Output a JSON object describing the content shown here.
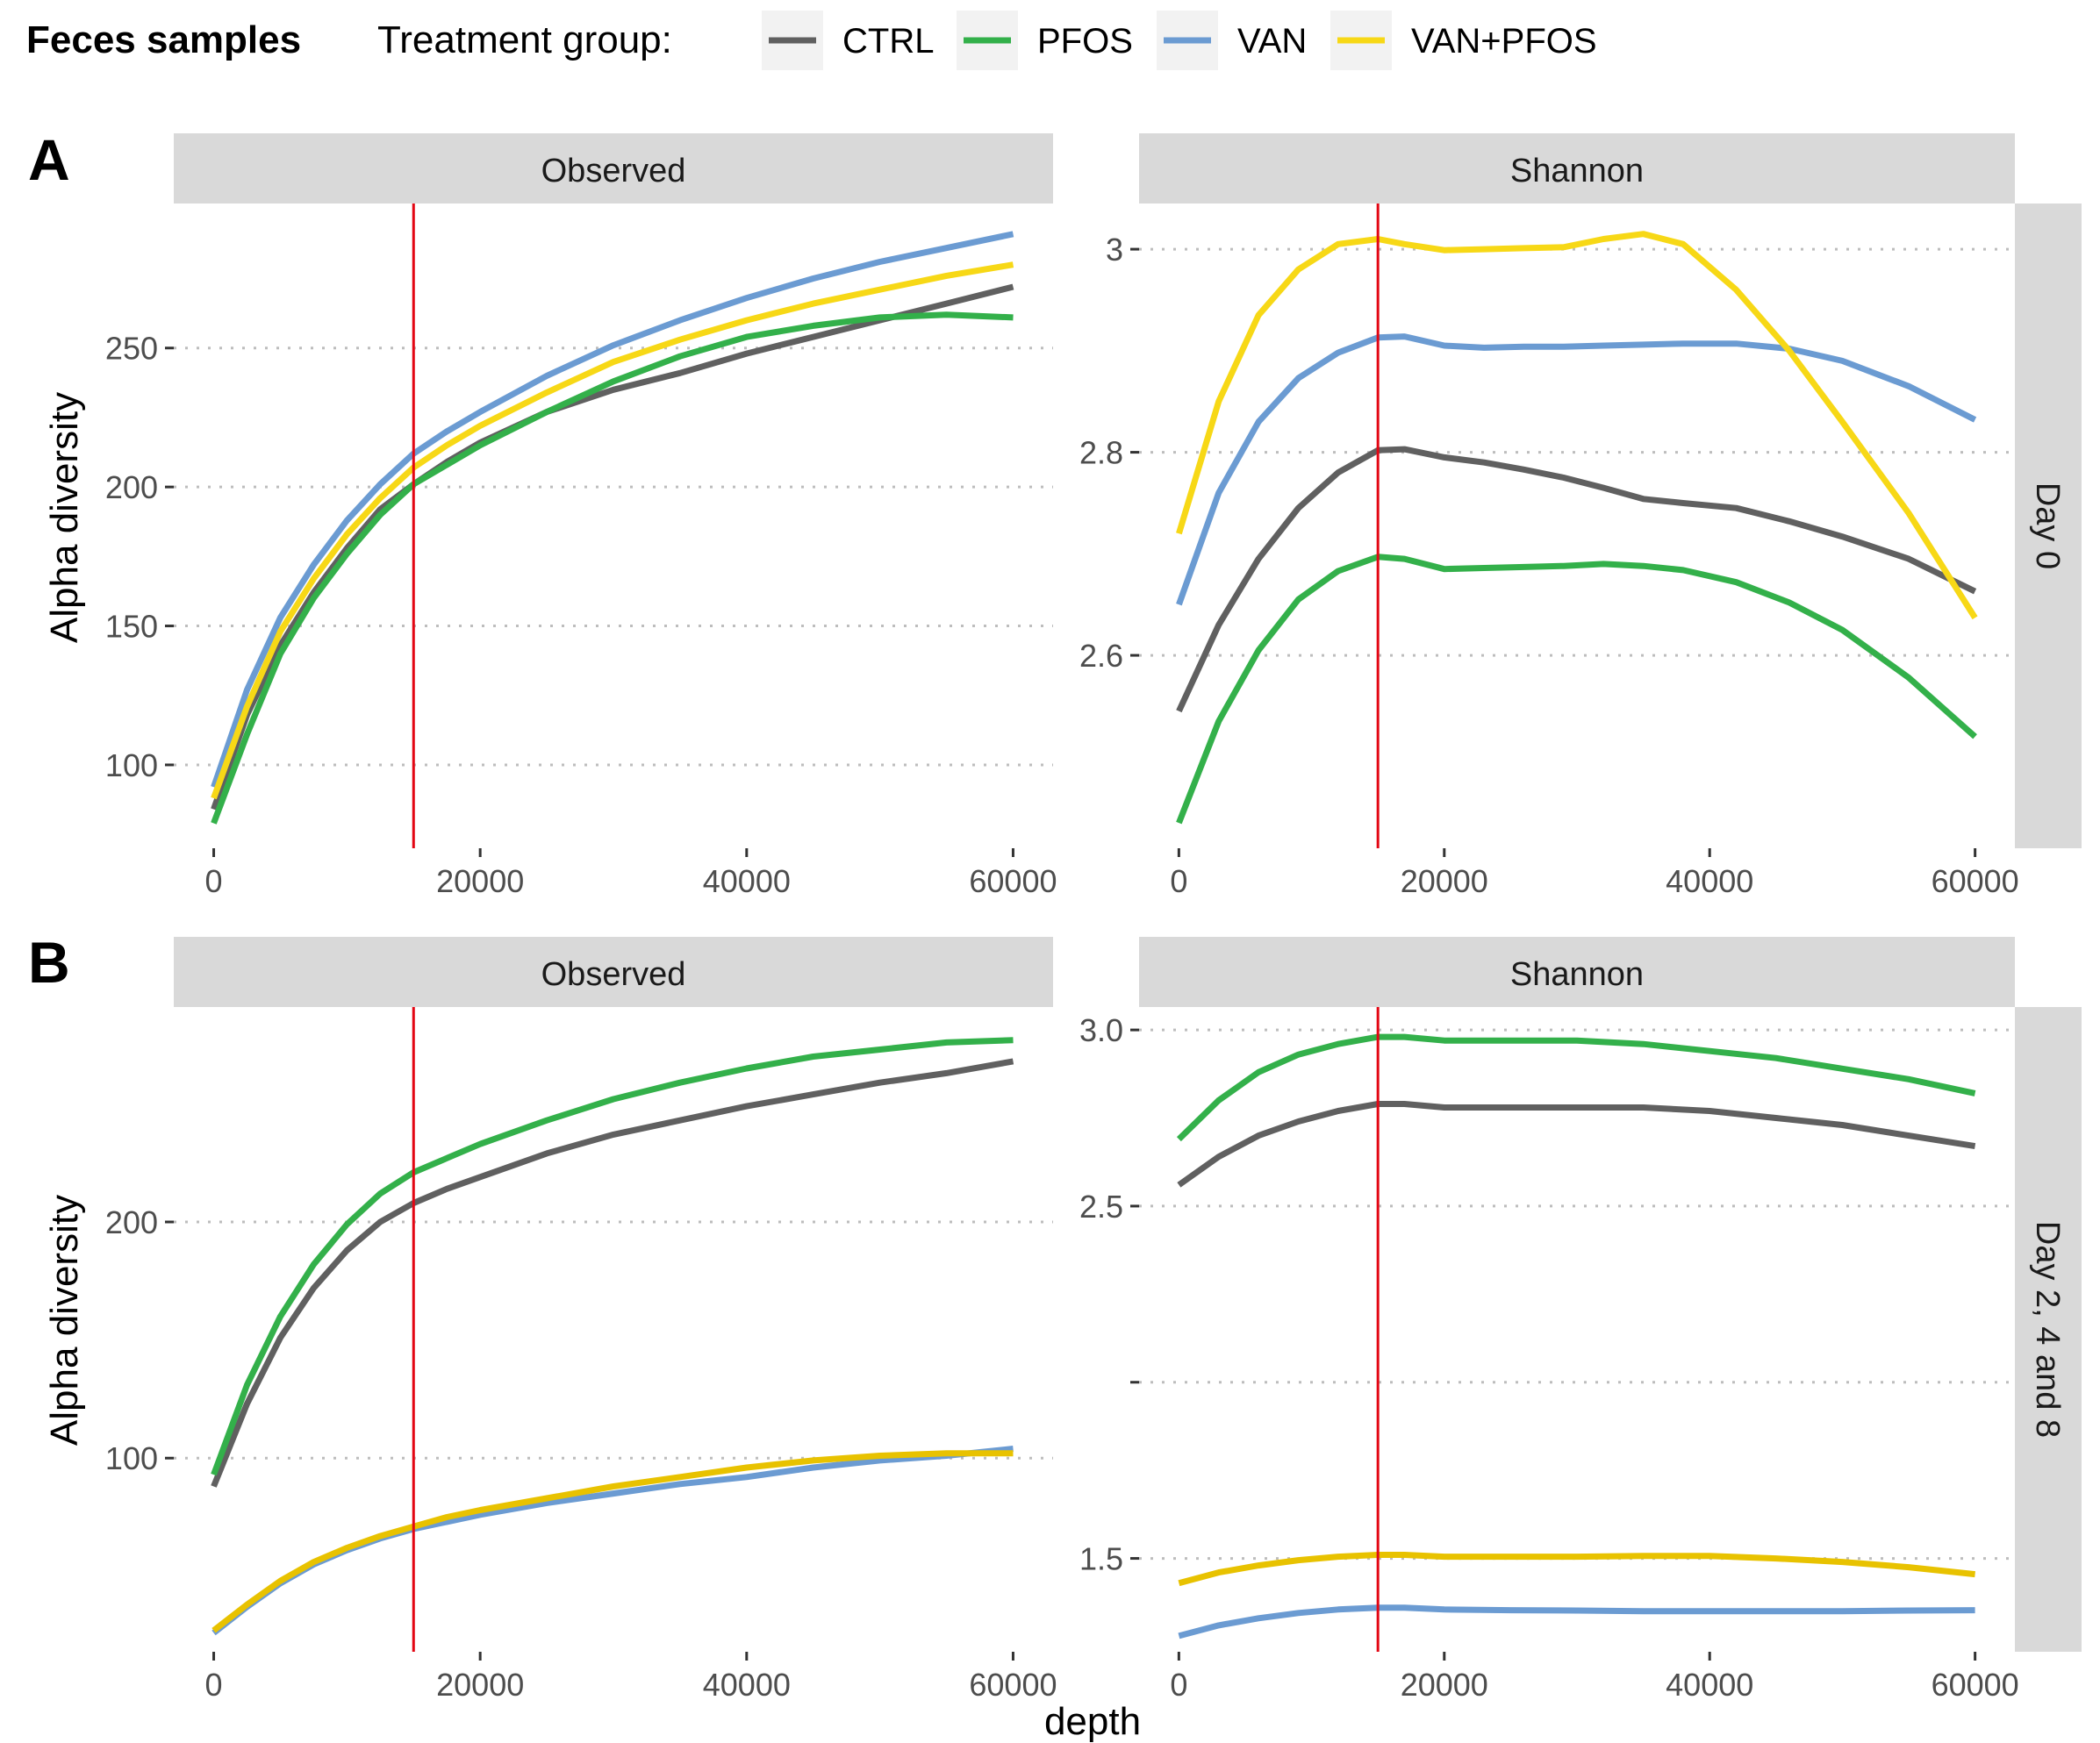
{
  "legend": {
    "heading": "Feces samples",
    "title": "Treatment group:",
    "items": [
      {
        "label": "CTRL",
        "color": "#606060"
      },
      {
        "label": "PFOS",
        "color": "#33b04a"
      },
      {
        "label": "VAN",
        "color": "#6b9bd2"
      },
      {
        "label": "VAN+PFOS",
        "color": "#f7d816"
      }
    ]
  },
  "xlabel": "depth",
  "ylabel": "Alpha diversity",
  "red_line_depth": 15000,
  "colors": {
    "strip": "#d9d9d9",
    "grid": "#bdbdbd",
    "axis_text": "#4d4d4d",
    "vline": "#e30613"
  },
  "chart_data": [
    {
      "type": "line",
      "row_label": "A",
      "facet": "Observed",
      "strip_label": "Observed",
      "x_ticks": [
        0,
        20000,
        40000,
        60000
      ],
      "xlim": [
        -3000,
        63000
      ],
      "y_ticks": [
        100,
        150,
        200,
        250
      ],
      "ylim": [
        70,
        302
      ],
      "series": [
        {
          "name": "CTRL",
          "color": "#606060",
          "x": [
            0,
            2500,
            5000,
            7500,
            10000,
            12500,
            15000,
            17500,
            20000,
            25000,
            30000,
            35000,
            40000,
            45000,
            50000,
            55000,
            60000
          ],
          "values": [
            84,
            118,
            143,
            162,
            178,
            192,
            201,
            209,
            216,
            227,
            235,
            241,
            248,
            254,
            260,
            266,
            272
          ]
        },
        {
          "name": "PFOS",
          "color": "#33b04a",
          "x": [
            0,
            2500,
            5000,
            7500,
            10000,
            12500,
            15000,
            17500,
            20000,
            25000,
            30000,
            35000,
            40000,
            45000,
            50000,
            55000,
            60000
          ],
          "values": [
            79,
            111,
            140,
            160,
            176,
            190,
            201,
            208,
            215,
            227,
            238,
            247,
            254,
            258,
            261,
            262,
            261
          ]
        },
        {
          "name": "VAN",
          "color": "#6b9bd2",
          "x": [
            0,
            2500,
            5000,
            7500,
            10000,
            12500,
            15000,
            17500,
            20000,
            25000,
            30000,
            35000,
            40000,
            45000,
            50000,
            55000,
            60000
          ],
          "values": [
            92,
            127,
            153,
            172,
            188,
            201,
            212,
            220,
            227,
            240,
            251,
            260,
            268,
            275,
            281,
            286,
            291
          ]
        },
        {
          "name": "VAN+PFOS",
          "color": "#f7d816",
          "x": [
            0,
            2500,
            5000,
            7500,
            10000,
            12500,
            15000,
            17500,
            20000,
            25000,
            30000,
            35000,
            40000,
            45000,
            50000,
            55000,
            60000
          ],
          "values": [
            88,
            121,
            148,
            167,
            183,
            196,
            207,
            215,
            222,
            234,
            245,
            253,
            260,
            266,
            271,
            276,
            280
          ]
        }
      ]
    },
    {
      "type": "line",
      "row_label": "",
      "facet": "Shannon",
      "strip_label": "Shannon",
      "side_strip": "Day 0",
      "x_ticks": [
        0,
        20000,
        40000,
        60000
      ],
      "xlim": [
        -3000,
        63000
      ],
      "y_ticks": [
        2.6,
        2.8,
        3.0
      ],
      "ylim": [
        2.41,
        3.045
      ],
      "series": [
        {
          "name": "CTRL",
          "color": "#606060",
          "x": [
            0,
            3000,
            6000,
            9000,
            12000,
            15000,
            17000,
            20000,
            23000,
            26000,
            29000,
            32000,
            35000,
            38000,
            42000,
            46000,
            50000,
            55000,
            60000
          ],
          "values": [
            2.545,
            2.63,
            2.695,
            2.745,
            2.78,
            2.802,
            2.803,
            2.795,
            2.79,
            2.783,
            2.775,
            2.765,
            2.754,
            2.75,
            2.745,
            2.732,
            2.717,
            2.695,
            2.663
          ]
        },
        {
          "name": "PFOS",
          "color": "#33b04a",
          "x": [
            0,
            3000,
            6000,
            9000,
            12000,
            15000,
            17000,
            20000,
            23000,
            26000,
            29000,
            32000,
            35000,
            38000,
            42000,
            46000,
            50000,
            55000,
            60000
          ],
          "values": [
            2.435,
            2.535,
            2.605,
            2.655,
            2.683,
            2.697,
            2.695,
            2.685,
            2.686,
            2.687,
            2.688,
            2.69,
            2.688,
            2.684,
            2.672,
            2.652,
            2.625,
            2.578,
            2.52
          ]
        },
        {
          "name": "VAN",
          "color": "#6b9bd2",
          "x": [
            0,
            3000,
            6000,
            9000,
            12000,
            15000,
            17000,
            20000,
            23000,
            26000,
            29000,
            32000,
            35000,
            38000,
            42000,
            46000,
            50000,
            55000,
            60000
          ],
          "values": [
            2.65,
            2.76,
            2.83,
            2.873,
            2.898,
            2.913,
            2.914,
            2.905,
            2.903,
            2.904,
            2.904,
            2.905,
            2.906,
            2.907,
            2.907,
            2.902,
            2.89,
            2.865,
            2.832
          ]
        },
        {
          "name": "VAN+PFOS",
          "color": "#f7d816",
          "x": [
            0,
            3000,
            6000,
            9000,
            12000,
            15000,
            17000,
            20000,
            23000,
            26000,
            29000,
            32000,
            35000,
            38000,
            42000,
            46000,
            50000,
            55000,
            60000
          ],
          "values": [
            2.72,
            2.85,
            2.935,
            2.98,
            3.005,
            3.01,
            3.005,
            2.999,
            3.0,
            3.001,
            3.002,
            3.01,
            3.015,
            3.005,
            2.96,
            2.9,
            2.83,
            2.74,
            2.637
          ]
        }
      ]
    },
    {
      "type": "line",
      "row_label": "B",
      "facet": "Observed",
      "strip_label": "Observed",
      "x_ticks": [
        0,
        20000,
        40000,
        60000
      ],
      "xlim": [
        -3000,
        63000
      ],
      "y_ticks": [
        100,
        200
      ],
      "ylim": [
        18,
        291
      ],
      "series": [
        {
          "name": "CTRL",
          "color": "#606060",
          "x": [
            0,
            2500,
            5000,
            7500,
            10000,
            12500,
            15000,
            17500,
            20000,
            25000,
            30000,
            35000,
            40000,
            45000,
            50000,
            55000,
            60000
          ],
          "values": [
            88,
            123,
            151,
            172,
            188,
            200,
            208,
            214,
            219,
            229,
            237,
            243,
            249,
            254,
            259,
            263,
            268
          ]
        },
        {
          "name": "PFOS",
          "color": "#33b04a",
          "x": [
            0,
            2500,
            5000,
            7500,
            10000,
            12500,
            15000,
            17500,
            20000,
            25000,
            30000,
            35000,
            40000,
            45000,
            50000,
            55000,
            60000
          ],
          "values": [
            93,
            131,
            160,
            182,
            199,
            212,
            221,
            227,
            233,
            243,
            252,
            259,
            265,
            270,
            273,
            276,
            277
          ]
        },
        {
          "name": "VAN",
          "color": "#6b9bd2",
          "x": [
            0,
            2500,
            5000,
            7500,
            10000,
            12500,
            15000,
            17500,
            20000,
            25000,
            30000,
            35000,
            40000,
            45000,
            50000,
            55000,
            60000
          ],
          "values": [
            26,
            37,
            47,
            55,
            61,
            66,
            70,
            73,
            76,
            81,
            85,
            89,
            92,
            96,
            99,
            101,
            104
          ]
        },
        {
          "name": "VAN+PFOS",
          "color": "#e8c200",
          "x": [
            0,
            2500,
            5000,
            7500,
            10000,
            12500,
            15000,
            17500,
            20000,
            25000,
            30000,
            35000,
            40000,
            45000,
            50000,
            55000,
            60000
          ],
          "values": [
            27,
            38,
            48,
            56,
            62,
            67,
            71,
            75,
            78,
            83,
            88,
            92,
            96,
            99,
            101,
            102,
            102
          ]
        }
      ]
    },
    {
      "type": "line",
      "row_label": "",
      "facet": "Shannon",
      "strip_label": "Shannon",
      "side_strip": "Day 2, 4 and 8",
      "x_ticks": [
        0,
        20000,
        40000,
        60000
      ],
      "x_tick_labels": [
        "0",
        "20000",
        "40000",
        "60000"
      ],
      "y_ticks": [
        1.5,
        2.0,
        2.5,
        3.0
      ],
      "y_tick_labels": [
        "1.5",
        "",
        "2.5",
        "3.0"
      ],
      "xlim": [
        -3000,
        63000
      ],
      "ylim": [
        1.235,
        3.065
      ],
      "series": [
        {
          "name": "CTRL",
          "color": "#606060",
          "x": [
            0,
            3000,
            6000,
            9000,
            12000,
            15000,
            17000,
            20000,
            25000,
            30000,
            35000,
            40000,
            45000,
            50000,
            55000,
            60000
          ],
          "values": [
            2.56,
            2.64,
            2.7,
            2.74,
            2.77,
            2.79,
            2.79,
            2.78,
            2.78,
            2.78,
            2.78,
            2.77,
            2.75,
            2.73,
            2.7,
            2.67
          ]
        },
        {
          "name": "PFOS",
          "color": "#33b04a",
          "x": [
            0,
            3000,
            6000,
            9000,
            12000,
            15000,
            17000,
            20000,
            25000,
            30000,
            35000,
            40000,
            45000,
            50000,
            55000,
            60000
          ],
          "values": [
            2.69,
            2.8,
            2.88,
            2.93,
            2.96,
            2.98,
            2.98,
            2.97,
            2.97,
            2.97,
            2.96,
            2.94,
            2.92,
            2.89,
            2.86,
            2.82
          ]
        },
        {
          "name": "VAN",
          "color": "#6b9bd2",
          "x": [
            0,
            3000,
            6000,
            9000,
            12000,
            15000,
            17000,
            20000,
            25000,
            30000,
            35000,
            40000,
            45000,
            50000,
            55000,
            60000
          ],
          "values": [
            1.28,
            1.31,
            1.33,
            1.345,
            1.355,
            1.36,
            1.36,
            1.355,
            1.353,
            1.352,
            1.35,
            1.35,
            1.35,
            1.35,
            1.352,
            1.353
          ]
        },
        {
          "name": "VAN+PFOS",
          "color": "#e8c200",
          "x": [
            0,
            3000,
            6000,
            9000,
            12000,
            15000,
            17000,
            20000,
            25000,
            30000,
            35000,
            40000,
            45000,
            50000,
            55000,
            60000
          ],
          "values": [
            1.43,
            1.46,
            1.48,
            1.495,
            1.505,
            1.51,
            1.51,
            1.505,
            1.505,
            1.505,
            1.507,
            1.507,
            1.5,
            1.49,
            1.475,
            1.455
          ]
        }
      ]
    }
  ]
}
